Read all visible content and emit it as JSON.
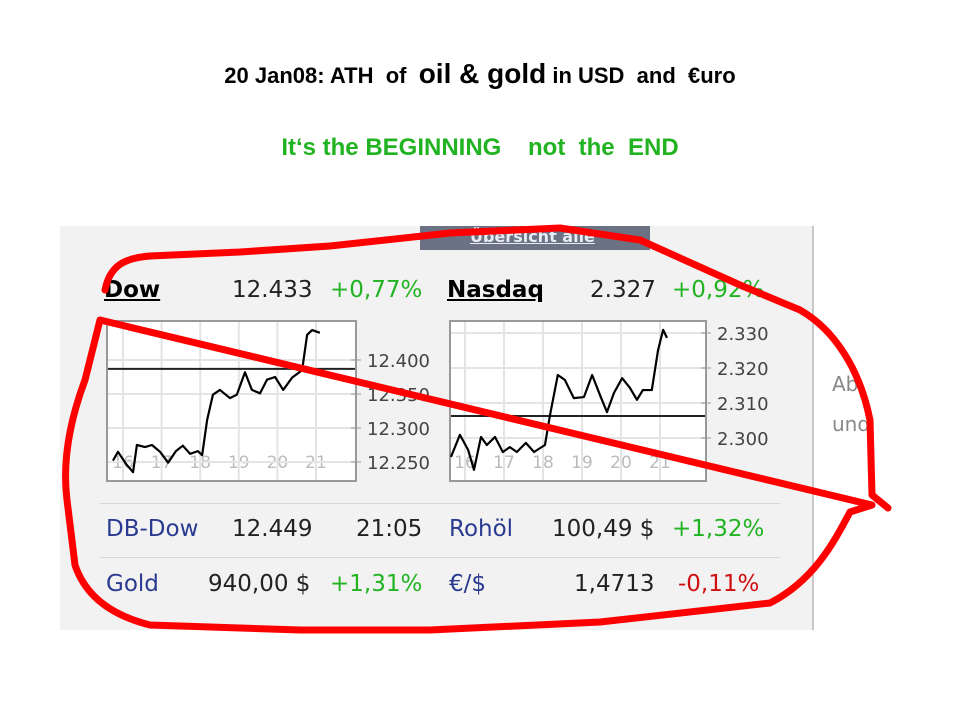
{
  "slide": {
    "title_part1": "20 Jan08: ATH  of  ",
    "title_part2": "oil & gold",
    "title_part3": " in USD  and  €uro",
    "subtitle": "It‘s the BEGINNING    not  the  END",
    "colors": {
      "subtitle": "#22b322",
      "annotation": "#ff0000",
      "positive": "#22b322",
      "negative": "#d01010",
      "link": "#2a3a90"
    }
  },
  "widget": {
    "header_link": "Übersicht alle",
    "side_text": [
      "Ab",
      "und"
    ],
    "dow": {
      "name": "Dow",
      "value": "12.433",
      "change": "+0,77%"
    },
    "nasdaq": {
      "name": "Nasdaq",
      "value": "2.327",
      "change": "+0,92%"
    },
    "rows": [
      {
        "left_label": "DB-Dow",
        "left_value": "12.449",
        "left_extra": "21:05",
        "right_label": "Rohöl",
        "right_value": "100,49 $",
        "right_change": "+1,32%"
      },
      {
        "left_label": "Gold",
        "left_value": "940,00 $",
        "left_extra": "+1,31%",
        "right_label": "€/$",
        "right_value": "1,4713",
        "right_change": "-0,11%"
      }
    ]
  },
  "chart_data": [
    {
      "type": "line",
      "title": "Dow",
      "x_ticks": [
        "16",
        "17",
        "18",
        "19",
        "20",
        "21"
      ],
      "y_ticks": [
        "12.400",
        "12.350",
        "12.300",
        "12.250"
      ],
      "y_tick_values": [
        12400,
        12350,
        12300,
        12250
      ],
      "reference_line": 12387,
      "grid": true,
      "x": [
        15.74,
        15.87,
        16.08,
        16.26,
        16.36,
        16.57,
        16.75,
        16.96,
        17.17,
        17.37,
        17.55,
        17.74,
        17.94,
        18.05,
        18.18,
        18.33,
        18.51,
        18.77,
        18.95,
        19.16,
        19.34,
        19.55,
        19.73,
        19.94,
        20.15,
        20.38,
        20.64,
        20.77,
        20.9,
        21.1
      ],
      "y": [
        12252,
        12265,
        12247,
        12235,
        12275,
        12272,
        12275,
        12265,
        12249,
        12266,
        12274,
        12262,
        12266,
        12260,
        12312,
        12349,
        12356,
        12344,
        12349,
        12382,
        12356,
        12351,
        12371,
        12375,
        12356,
        12374,
        12385,
        12437,
        12444,
        12440
      ]
    },
    {
      "type": "line",
      "title": "Nasdaq",
      "x_ticks": [
        "16",
        "17",
        "18",
        "19",
        "20",
        "21"
      ],
      "y_ticks": [
        "2.330",
        "2.320",
        "2.310",
        "2.300"
      ],
      "y_tick_values": [
        2330,
        2320,
        2310,
        2300
      ],
      "reference_line": 2306.3,
      "grid": true,
      "x": [
        15.64,
        15.87,
        16.08,
        16.23,
        16.41,
        16.56,
        16.77,
        16.97,
        17.15,
        17.33,
        17.56,
        17.77,
        18.05,
        18.18,
        18.38,
        18.56,
        18.79,
        19.05,
        19.26,
        19.46,
        19.64,
        19.82,
        20.03,
        20.23,
        20.41,
        20.56,
        20.79,
        20.95,
        21.08,
        21.18
      ],
      "y": [
        2294.6,
        2300.9,
        2296.6,
        2290.9,
        2300.3,
        2298.0,
        2300.3,
        2296.0,
        2297.4,
        2296.0,
        2298.6,
        2296.0,
        2298.0,
        2306.6,
        2318.0,
        2316.6,
        2311.4,
        2311.7,
        2318.0,
        2312.3,
        2307.4,
        2312.9,
        2317.1,
        2314.3,
        2310.9,
        2313.7,
        2313.7,
        2325.1,
        2330.9,
        2328.6
      ]
    }
  ]
}
